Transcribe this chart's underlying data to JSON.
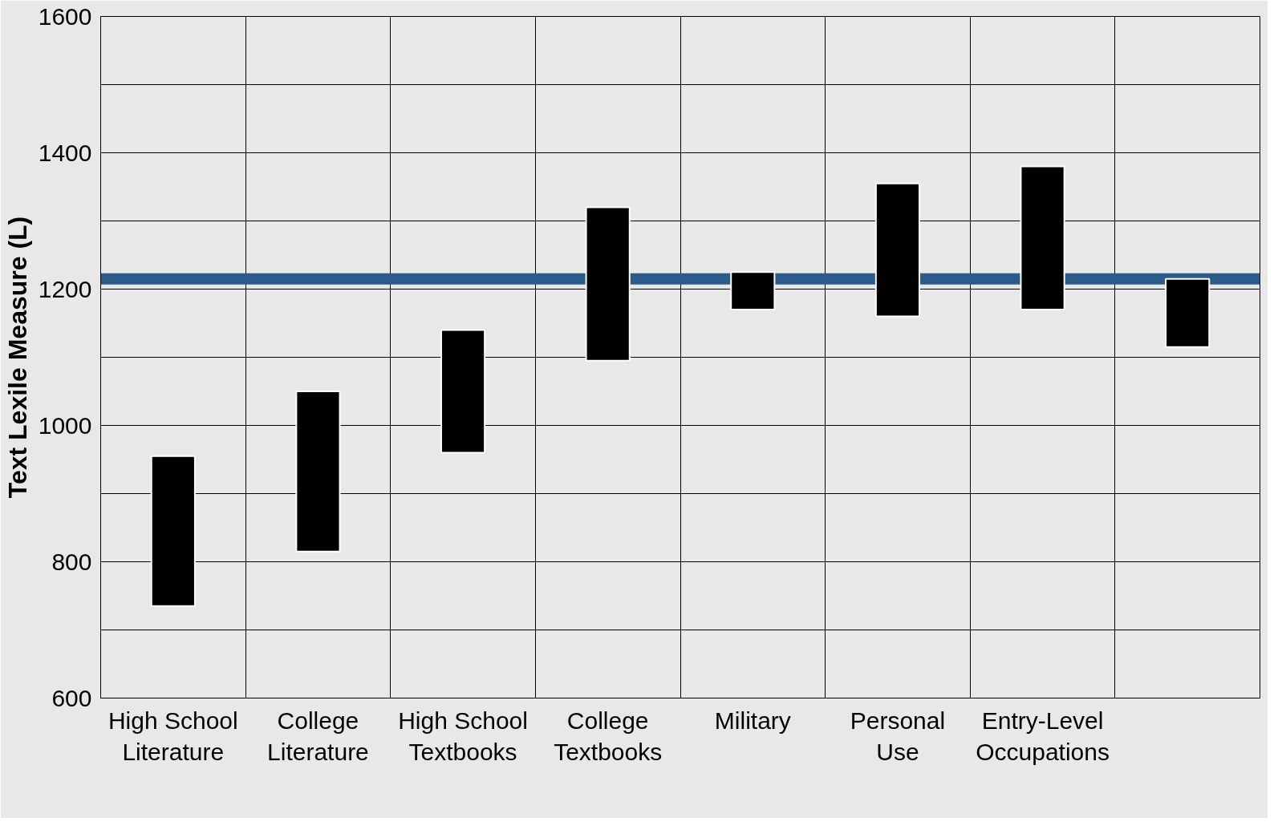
{
  "chart_data": {
    "type": "bar",
    "ylabel": "Text Lexile Measure (L)",
    "categories": [
      "High School Literature",
      "College Literature",
      "High School Textbooks",
      "College Textbooks",
      "Military",
      "Personal Use",
      "Entry-Level Occupations",
      null
    ],
    "base": [
      735,
      815,
      960,
      1095,
      1170,
      1160,
      1170,
      1115
    ],
    "values": [
      220,
      235,
      180,
      225,
      55,
      195,
      210,
      100
    ],
    "color": "#000000",
    "ylim": [
      600,
      1600
    ],
    "yticks": [
      600,
      {
        "value": 700,
        "label": null
      },
      800,
      {
        "value": 900,
        "label": null
      },
      1000,
      {
        "value": 1100,
        "label": null
      },
      1200,
      {
        "value": 1300,
        "label": null
      },
      1400,
      {
        "value": 1500,
        "label": null
      },
      1600
    ],
    "ref_lines": [
      {
        "axis": "y",
        "value": 1215,
        "label": null,
        "color": "#2b5b88"
      }
    ],
    "grid": true
  }
}
